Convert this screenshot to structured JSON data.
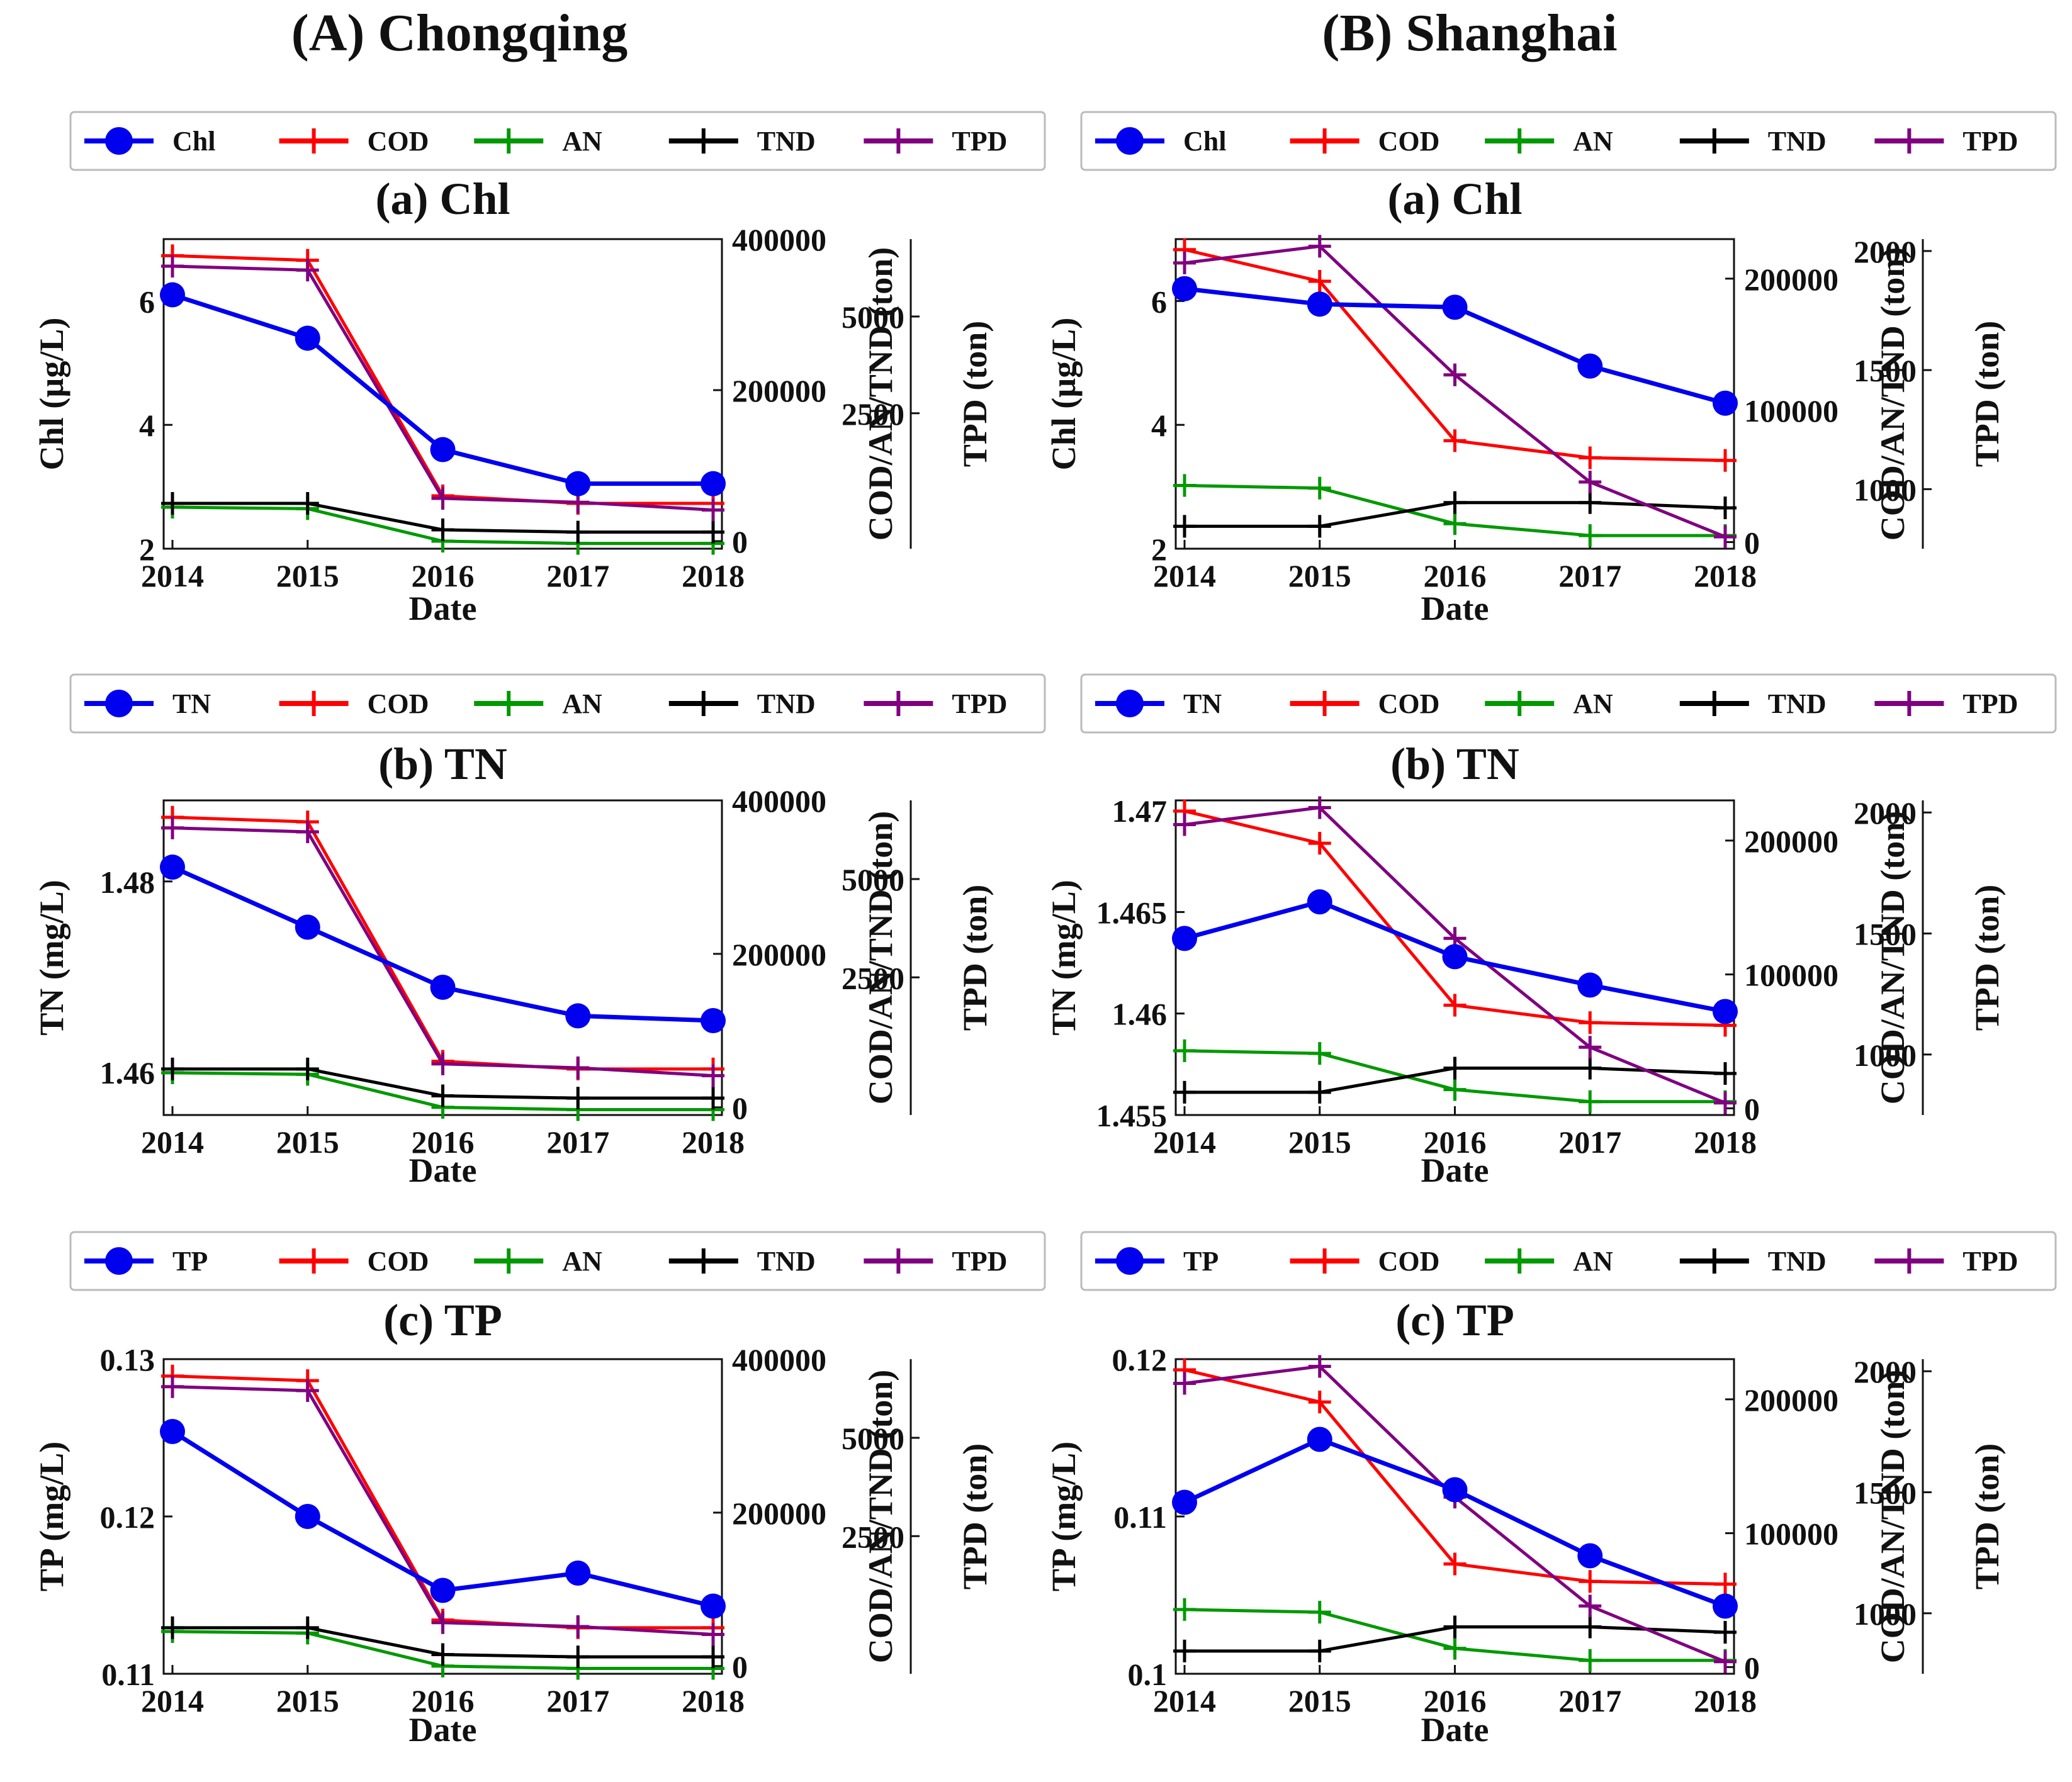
{
  "figure": {
    "columns": [
      {
        "id": "A",
        "title": "(A) Chongqing"
      },
      {
        "id": "B",
        "title": "(B) Shanghai"
      }
    ]
  },
  "colors": {
    "COD": "#ff0000",
    "AN": "#009900",
    "TND": "#000000",
    "TPD": "#800080",
    "primary": "#0000ee"
  },
  "chart_data": [
    {
      "id": "A-Chl",
      "column": "A",
      "row": 0,
      "type": "line",
      "title": "(a) Chl",
      "xlabel": "Date",
      "ylabel": "Chl (µg/L)",
      "y2label": "COD/AN/TND (ton)",
      "y3label": "TPD (ton)",
      "x": [
        "2014",
        "2015",
        "2016",
        "2017",
        "2018"
      ],
      "ylim": [
        2,
        7
      ],
      "yticks": [
        2,
        4,
        6
      ],
      "y2lim": [
        -10000,
        400000
      ],
      "y2ticks": [
        0,
        200000,
        400000
      ],
      "y3lim": [
        -1000,
        7000
      ],
      "y3ticks": [
        2500,
        5000
      ],
      "legend": [
        "Chl",
        "COD",
        "AN",
        "TND",
        "TPD"
      ],
      "series": [
        {
          "name": "Chl",
          "axis": "y",
          "values": [
            6.1,
            5.4,
            3.6,
            3.05,
            3.05
          ]
        },
        {
          "name": "COD",
          "axis": "y2",
          "values": [
            378000,
            372000,
            60000,
            50000,
            50000
          ]
        },
        {
          "name": "AN",
          "axis": "y2",
          "values": [
            45000,
            43000,
            0,
            -3000,
            -3000
          ]
        },
        {
          "name": "TND",
          "axis": "y2",
          "values": [
            50000,
            50000,
            15000,
            12000,
            12000
          ]
        },
        {
          "name": "TPD",
          "axis": "y3",
          "values": [
            6300,
            6200,
            300,
            200,
            0
          ]
        }
      ]
    },
    {
      "id": "B-Chl",
      "column": "B",
      "row": 0,
      "type": "line",
      "title": "(a) Chl",
      "xlabel": "Date",
      "ylabel": "Chl (µg/L)",
      "y2label": "COD/AN/TND (ton)",
      "y3label": "TPD (ton)",
      "x": [
        "2014",
        "2015",
        "2016",
        "2017",
        "2018"
      ],
      "ylim": [
        2,
        7
      ],
      "yticks": [
        2,
        4,
        6
      ],
      "y2lim": [
        -5000,
        230000
      ],
      "y2ticks": [
        0,
        100000,
        200000
      ],
      "y3lim": [
        750,
        2050
      ],
      "y3ticks": [
        1000,
        1500,
        2000
      ],
      "legend": [
        "Chl",
        "COD",
        "AN",
        "TND",
        "TPD"
      ],
      "series": [
        {
          "name": "Chl",
          "axis": "y",
          "values": [
            6.2,
            5.95,
            5.9,
            4.95,
            4.35
          ]
        },
        {
          "name": "COD",
          "axis": "y2",
          "values": [
            222000,
            198000,
            77000,
            64000,
            62000
          ]
        },
        {
          "name": "AN",
          "axis": "y2",
          "values": [
            43000,
            41000,
            14000,
            5000,
            5000
          ]
        },
        {
          "name": "TND",
          "axis": "y2",
          "values": [
            12000,
            12000,
            30000,
            30000,
            26000
          ]
        },
        {
          "name": "TPD",
          "axis": "y3",
          "values": [
            1950,
            2020,
            1480,
            1030,
            800
          ]
        }
      ]
    },
    {
      "id": "A-TN",
      "column": "A",
      "row": 1,
      "type": "line",
      "title": "(b) TN",
      "xlabel": "Date",
      "ylabel": "TN (mg/L)",
      "y2label": "COD/AN/TND (ton)",
      "y3label": "TPD (ton)",
      "x": [
        "2014",
        "2015",
        "2016",
        "2017",
        "2018"
      ],
      "ylim": [
        1.4555,
        1.4885
      ],
      "yticks": [
        1.46,
        1.48
      ],
      "y2lim": [
        -10000,
        400000
      ],
      "y2ticks": [
        0,
        200000,
        400000
      ],
      "y3lim": [
        -1000,
        7000
      ],
      "y3ticks": [
        2500,
        5000
      ],
      "legend": [
        "TN",
        "COD",
        "AN",
        "TND",
        "TPD"
      ],
      "series": [
        {
          "name": "TN",
          "axis": "y",
          "values": [
            1.4815,
            1.4752,
            1.4689,
            1.4659,
            1.4654
          ]
        },
        {
          "name": "COD",
          "axis": "y2",
          "values": [
            378000,
            372000,
            60000,
            50000,
            50000
          ]
        },
        {
          "name": "AN",
          "axis": "y2",
          "values": [
            45000,
            43000,
            0,
            -3000,
            -3000
          ]
        },
        {
          "name": "TND",
          "axis": "y2",
          "values": [
            50000,
            50000,
            15000,
            12000,
            12000
          ]
        },
        {
          "name": "TPD",
          "axis": "y3",
          "values": [
            6300,
            6200,
            300,
            200,
            0
          ]
        }
      ]
    },
    {
      "id": "B-TN",
      "column": "B",
      "row": 1,
      "type": "line",
      "title": "(b) TN",
      "xlabel": "Date",
      "ylabel": "TN (mg/L)",
      "y2label": "COD/AN/TND (ton)",
      "y3label": "TPD (ton)",
      "x": [
        "2014",
        "2015",
        "2016",
        "2017",
        "2018"
      ],
      "ylim": [
        1.455,
        1.4705
      ],
      "yticks": [
        1.455,
        1.46,
        1.465,
        1.47
      ],
      "y2lim": [
        -5000,
        230000
      ],
      "y2ticks": [
        0,
        100000,
        200000
      ],
      "y3lim": [
        750,
        2050
      ],
      "y3ticks": [
        1000,
        1500,
        2000
      ],
      "legend": [
        "TN",
        "COD",
        "AN",
        "TND",
        "TPD"
      ],
      "series": [
        {
          "name": "TN",
          "axis": "y",
          "values": [
            1.4637,
            1.4655,
            1.4628,
            1.4614,
            1.4601
          ]
        },
        {
          "name": "COD",
          "axis": "y2",
          "values": [
            222000,
            198000,
            77000,
            64000,
            62000
          ]
        },
        {
          "name": "AN",
          "axis": "y2",
          "values": [
            43000,
            41000,
            14000,
            5000,
            5000
          ]
        },
        {
          "name": "TND",
          "axis": "y2",
          "values": [
            12000,
            12000,
            30000,
            30000,
            26000
          ]
        },
        {
          "name": "TPD",
          "axis": "y3",
          "values": [
            1950,
            2020,
            1480,
            1030,
            800
          ]
        }
      ]
    },
    {
      "id": "A-TP",
      "column": "A",
      "row": 2,
      "type": "line",
      "title": "(c) TP",
      "xlabel": "Date",
      "ylabel": "TP (mg/L)",
      "y2label": "COD/AN/TND (ton)",
      "y3label": "TPD (ton)",
      "x": [
        "2014",
        "2015",
        "2016",
        "2017",
        "2018"
      ],
      "ylim": [
        0.11,
        0.13
      ],
      "yticks": [
        0.11,
        0.12,
        0.13
      ],
      "y2lim": [
        -10000,
        400000
      ],
      "y2ticks": [
        0,
        200000,
        400000
      ],
      "y3lim": [
        -1000,
        7000
      ],
      "y3ticks": [
        2500,
        5000
      ],
      "legend": [
        "TP",
        "COD",
        "AN",
        "TND",
        "TPD"
      ],
      "series": [
        {
          "name": "TP",
          "axis": "y",
          "values": [
            0.1254,
            0.12,
            0.1153,
            0.1164,
            0.1143
          ]
        },
        {
          "name": "COD",
          "axis": "y2",
          "values": [
            378000,
            372000,
            60000,
            50000,
            50000
          ]
        },
        {
          "name": "AN",
          "axis": "y2",
          "values": [
            45000,
            43000,
            0,
            -3000,
            -3000
          ]
        },
        {
          "name": "TND",
          "axis": "y2",
          "values": [
            50000,
            50000,
            15000,
            12000,
            12000
          ]
        },
        {
          "name": "TPD",
          "axis": "y3",
          "values": [
            6300,
            6200,
            300,
            200,
            0
          ]
        }
      ]
    },
    {
      "id": "B-TP",
      "column": "B",
      "row": 2,
      "type": "line",
      "title": "(c) TP",
      "xlabel": "Date",
      "ylabel": "TP (mg/L)",
      "y2label": "COD/AN/TND (ton)",
      "y3label": "TPD (ton)",
      "x": [
        "2014",
        "2015",
        "2016",
        "2017",
        "2018"
      ],
      "ylim": [
        0.1,
        0.12
      ],
      "yticks": [
        0.1,
        0.11,
        0.12
      ],
      "y2lim": [
        -5000,
        230000
      ],
      "y2ticks": [
        0,
        100000,
        200000
      ],
      "y3lim": [
        750,
        2050
      ],
      "y3ticks": [
        1000,
        1500,
        2000
      ],
      "legend": [
        "TP",
        "COD",
        "AN",
        "TND",
        "TPD"
      ],
      "series": [
        {
          "name": "TP",
          "axis": "y",
          "values": [
            0.1109,
            0.1149,
            0.1117,
            0.1075,
            0.1043
          ]
        },
        {
          "name": "COD",
          "axis": "y2",
          "values": [
            222000,
            198000,
            77000,
            64000,
            62000
          ]
        },
        {
          "name": "AN",
          "axis": "y2",
          "values": [
            43000,
            41000,
            14000,
            5000,
            5000
          ]
        },
        {
          "name": "TND",
          "axis": "y2",
          "values": [
            12000,
            12000,
            30000,
            30000,
            26000
          ]
        },
        {
          "name": "TPD",
          "axis": "y3",
          "values": [
            1950,
            2020,
            1480,
            1030,
            800
          ]
        }
      ]
    }
  ]
}
